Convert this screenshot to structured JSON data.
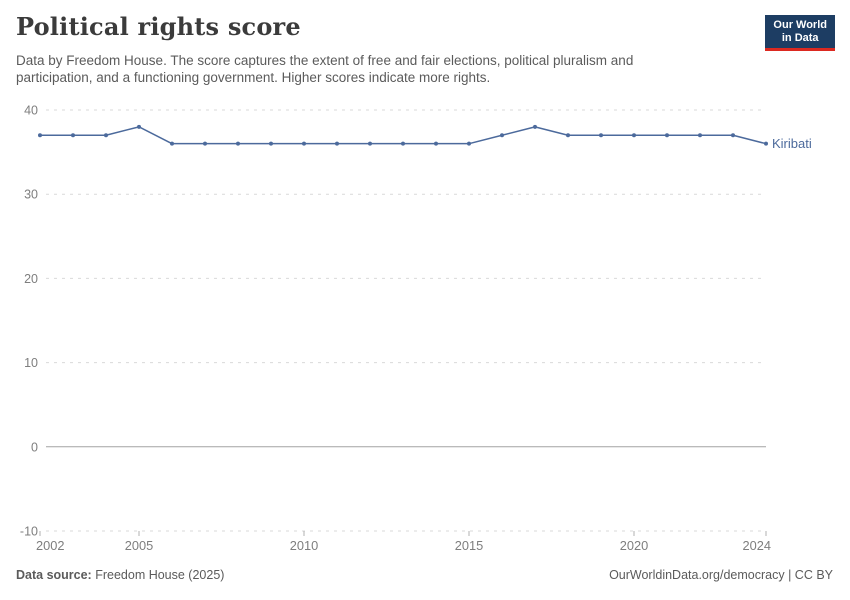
{
  "header": {
    "title": "Political rights score",
    "subtitle_lines": [
      "Data by Freedom House. The score captures the extent of free and fair elections, political pluralism and",
      "participation, and a functioning government. Higher scores indicate more rights."
    ],
    "logo": {
      "line1": "Our World",
      "line2": "in Data"
    }
  },
  "chart_data": {
    "type": "line",
    "title": "Political rights score",
    "x": [
      2002,
      2003,
      2004,
      2005,
      2006,
      2007,
      2008,
      2009,
      2010,
      2011,
      2012,
      2013,
      2014,
      2015,
      2016,
      2017,
      2018,
      2019,
      2020,
      2021,
      2022,
      2023,
      2024
    ],
    "series": [
      {
        "name": "Kiribati",
        "values": [
          37,
          37,
          37,
          38,
          36,
          36,
          36,
          36,
          36,
          36,
          36,
          36,
          36,
          36,
          37,
          38,
          37,
          37,
          37,
          37,
          37,
          37,
          36
        ],
        "color": "#4C6A9C"
      }
    ],
    "xlabel": "",
    "ylabel": "",
    "ylim": [
      -10,
      40
    ],
    "yticks": [
      40,
      30,
      20,
      10,
      0,
      -10
    ],
    "xticks": [
      2002,
      2005,
      2010,
      2015,
      2020,
      2024
    ],
    "grid": "horizontal dashed gridlines, solid zero line",
    "legend_position": "end-of-line label"
  },
  "footer": {
    "source_label": "Data source:",
    "source_value": " Freedom House (2025)",
    "license_text": "OurWorldinData.org/democracy | CC BY"
  },
  "colors": {
    "line": "#4C6A9C",
    "grid": "#d9d9d9",
    "zero_line": "#a3a3a3",
    "axis_text": "#7e7e7e",
    "title_text": "#3b3b3b",
    "body_text": "#5b5b5b",
    "logo_bg": "#1d3d63",
    "logo_red": "#dc2920"
  }
}
